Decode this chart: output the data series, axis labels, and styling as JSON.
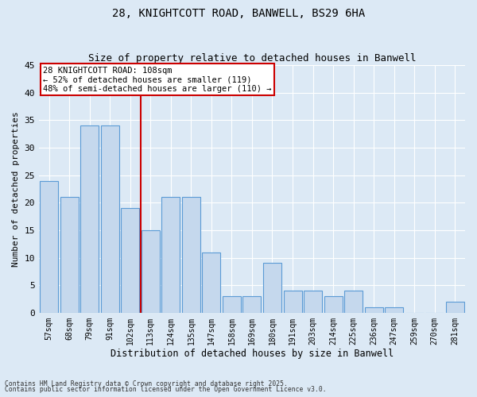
{
  "title1": "28, KNIGHTCOTT ROAD, BANWELL, BS29 6HA",
  "title2": "Size of property relative to detached houses in Banwell",
  "xlabel": "Distribution of detached houses by size in Banwell",
  "ylabel": "Number of detached properties",
  "categories": [
    "57sqm",
    "68sqm",
    "79sqm",
    "91sqm",
    "102sqm",
    "113sqm",
    "124sqm",
    "135sqm",
    "147sqm",
    "158sqm",
    "169sqm",
    "180sqm",
    "191sqm",
    "203sqm",
    "214sqm",
    "225sqm",
    "236sqm",
    "247sqm",
    "259sqm",
    "270sqm",
    "281sqm"
  ],
  "values": [
    24,
    21,
    34,
    34,
    19,
    15,
    21,
    21,
    11,
    3,
    3,
    9,
    4,
    4,
    3,
    4,
    1,
    1,
    0,
    0,
    2
  ],
  "bar_color": "#c5d8ed",
  "bar_edge_color": "#5b9bd5",
  "vline_x": 4.5,
  "vline_color": "#cc0000",
  "annotation_title": "28 KNIGHTCOTT ROAD: 108sqm",
  "annotation_line1": "← 52% of detached houses are smaller (119)",
  "annotation_line2": "48% of semi-detached houses are larger (110) →",
  "annotation_box_color": "#ffffff",
  "annotation_box_edge": "#cc0000",
  "background_color": "#dce9f5",
  "ylim": [
    0,
    45
  ],
  "yticks": [
    0,
    5,
    10,
    15,
    20,
    25,
    30,
    35,
    40,
    45
  ],
  "footer1": "Contains HM Land Registry data © Crown copyright and database right 2025.",
  "footer2": "Contains public sector information licensed under the Open Government Licence v3.0."
}
